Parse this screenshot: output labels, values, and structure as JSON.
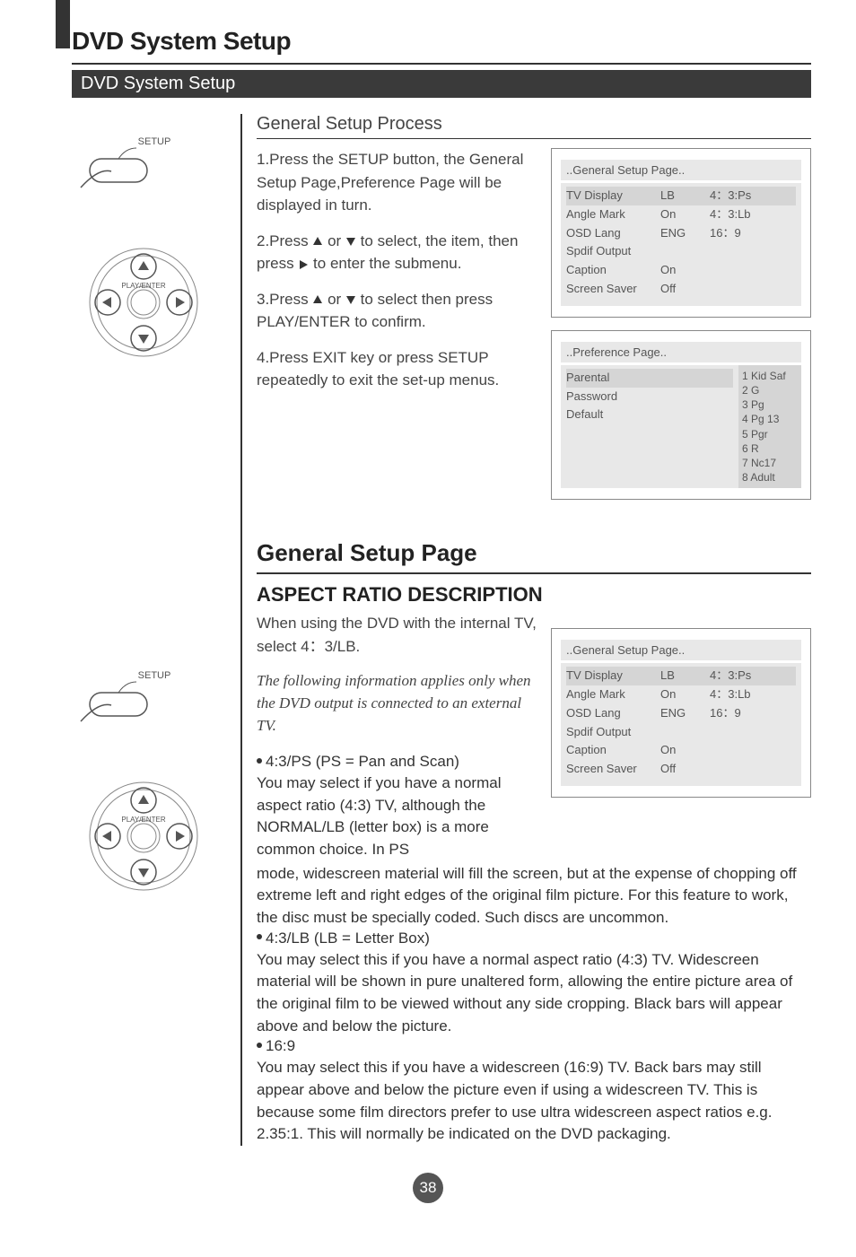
{
  "page": {
    "title": "DVD System Setup",
    "subheader": "DVD System Setup",
    "page_number": "38"
  },
  "icons": {
    "setup_label": "SETUP",
    "dpad_label": "PLAY/ENTER"
  },
  "process": {
    "heading": "General Setup Process",
    "step1": "1.Press the SETUP button, the General Setup Page,Preference Page  will be displayed in turn.",
    "step2a": "2.Press  ",
    "step2b": "  to select, the item, then press",
    "step2c": " to enter the submenu.",
    "step2_or": " or ",
    "step3a": "3.Press ",
    "step3b": "  to select then press PLAY/ENTER to confirm.",
    "step3_or": " or ",
    "step4": "4.Press  EXIT key or press SETUP repeatedly  to exit  the  set-up menus."
  },
  "menus": {
    "general": {
      "header": "..General Setup Page..",
      "rows": [
        {
          "k": "TV Display",
          "v": "LB",
          "e": "4：3:Ps"
        },
        {
          "k": "Angle Mark",
          "v": "On",
          "e": "4：3:Lb"
        },
        {
          "k": "OSD Lang",
          "v": "ENG",
          "e": "16：9"
        },
        {
          "k": "Spdif Output",
          "v": "",
          "e": ""
        },
        {
          "k": "Caption",
          "v": "On",
          "e": ""
        },
        {
          "k": "Screen Saver",
          "v": "Off",
          "e": ""
        }
      ]
    },
    "preference": {
      "header": "..Preference Page..",
      "left": [
        "Parental",
        "Password",
        "Default"
      ],
      "right": [
        "1 Kid Saf",
        "2 G",
        "3 Pg",
        "4 Pg 13",
        "5 Pgr",
        "6 R",
        "7 Nc17",
        "8 Adult"
      ]
    }
  },
  "aspect": {
    "heading_main": "General Setup Page",
    "heading_sub": "ASPECT RATIO DESCRIPTION",
    "intro": "When using the DVD with the internal TV, select 4：3/LB.",
    "italic": "The following information applies only when the DVD output is connected to an external TV.",
    "b1_head": "4:3/PS (PS = Pan and Scan)",
    "b1_text_a": "You may select if you have a normal aspect ratio (4:3) TV, although the NORMAL/LB (letter box) is a more common choice. In PS",
    "b1_text_b": "mode, widescreen material will fill the screen, but at the expense of chopping off extreme left and right edges of the original film picture. For this feature to work, the disc must be specially coded. Such discs are uncommon.",
    "b2_head": "4:3/LB (LB = Letter Box)",
    "b2_text": "You may select this if you have a normal aspect ratio (4:3) TV. Widescreen material will be shown in pure unaltered form, allowing the entire picture area of the original film to be viewed without any side cropping. Black bars will appear above and below the picture.",
    "b3_head": "16:9",
    "b3_text": "You may select this if you have a widescreen (16:9) TV. Back bars may still appear above and below the picture even if using a widescreen TV. This is because some film directors prefer to use ultra widescreen aspect ratios e.g. 2.35:1. This will normally be indicated on the DVD packaging."
  }
}
